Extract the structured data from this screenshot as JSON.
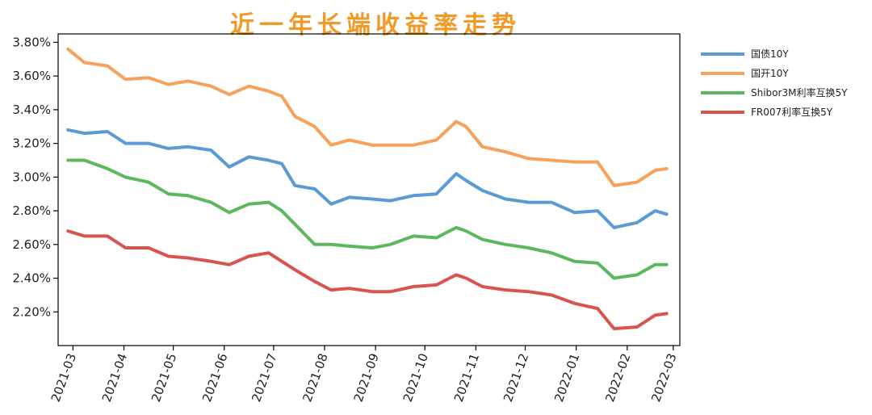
{
  "chart_data": {
    "type": "line",
    "title": "近一年长端收益率走势",
    "title_color": "#f39a26",
    "xlabel": "",
    "ylabel": "",
    "x_ticks": [
      "2021-03",
      "2021-04",
      "2021-05",
      "2021-06",
      "2021-07",
      "2021-08",
      "2021-09",
      "2021-10",
      "2021-11",
      "2021-12",
      "2022-01",
      "2022-02",
      "2022-03"
    ],
    "y_ticks": [
      "2.20%",
      "2.40%",
      "2.60%",
      "2.80%",
      "3.00%",
      "3.20%",
      "3.40%",
      "3.60%",
      "3.80%"
    ],
    "ylim": [
      2.0,
      3.85
    ],
    "xlim": [
      "2021-02-20",
      "2022-03-05"
    ],
    "grid": false,
    "legend_position": "right",
    "x": [
      "2021-02-26",
      "2021-03-08",
      "2021-03-22",
      "2021-04-02",
      "2021-04-16",
      "2021-04-28",
      "2021-05-10",
      "2021-05-24",
      "2021-06-04",
      "2021-06-16",
      "2021-06-28",
      "2021-07-06",
      "2021-07-14",
      "2021-07-26",
      "2021-08-05",
      "2021-08-16",
      "2021-08-30",
      "2021-09-10",
      "2021-09-24",
      "2021-10-08",
      "2021-10-20",
      "2021-10-26",
      "2021-11-05",
      "2021-11-19",
      "2021-12-03",
      "2021-12-17",
      "2021-12-31",
      "2022-01-14",
      "2022-01-24",
      "2022-02-07",
      "2022-02-18",
      "2022-02-25"
    ],
    "series": [
      {
        "name": "国债10Y",
        "color": "#5a9bd5",
        "values": [
          3.28,
          3.26,
          3.27,
          3.2,
          3.2,
          3.17,
          3.18,
          3.16,
          3.06,
          3.12,
          3.1,
          3.08,
          2.95,
          2.93,
          2.84,
          2.88,
          2.87,
          2.86,
          2.89,
          2.9,
          3.02,
          2.98,
          2.92,
          2.87,
          2.85,
          2.85,
          2.79,
          2.8,
          2.7,
          2.73,
          2.8,
          2.78
        ]
      },
      {
        "name": "国开10Y",
        "color": "#f7a25a",
        "values": [
          3.76,
          3.68,
          3.66,
          3.58,
          3.59,
          3.55,
          3.57,
          3.54,
          3.49,
          3.54,
          3.51,
          3.48,
          3.36,
          3.3,
          3.19,
          3.22,
          3.19,
          3.19,
          3.19,
          3.22,
          3.33,
          3.3,
          3.18,
          3.15,
          3.11,
          3.1,
          3.09,
          3.09,
          2.95,
          2.97,
          3.04,
          3.05
        ]
      },
      {
        "name": "Shibor3M利率互换5Y",
        "color": "#5cb85c",
        "values": [
          3.1,
          3.1,
          3.05,
          3.0,
          2.97,
          2.9,
          2.89,
          2.85,
          2.79,
          2.84,
          2.85,
          2.8,
          2.72,
          2.6,
          2.6,
          2.59,
          2.58,
          2.6,
          2.65,
          2.64,
          2.7,
          2.68,
          2.63,
          2.6,
          2.58,
          2.55,
          2.5,
          2.49,
          2.4,
          2.42,
          2.48,
          2.48
        ]
      },
      {
        "name": "FR007利率互换5Y",
        "color": "#d9534f",
        "values": [
          2.68,
          2.65,
          2.65,
          2.58,
          2.58,
          2.53,
          2.52,
          2.5,
          2.48,
          2.53,
          2.55,
          2.5,
          2.45,
          2.38,
          2.33,
          2.34,
          2.32,
          2.32,
          2.35,
          2.36,
          2.42,
          2.4,
          2.35,
          2.33,
          2.32,
          2.3,
          2.25,
          2.22,
          2.1,
          2.11,
          2.18,
          2.19
        ]
      }
    ]
  }
}
